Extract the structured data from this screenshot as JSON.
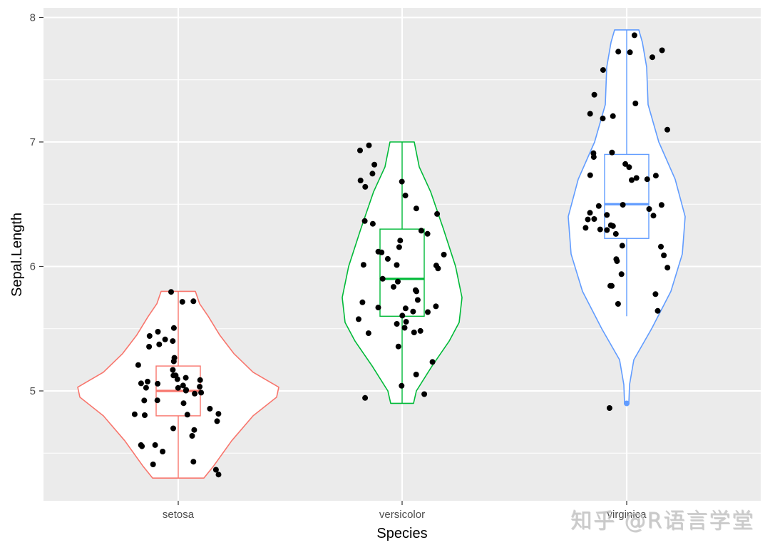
{
  "chart_data": {
    "type": "violin",
    "title": "",
    "xlabel": "Species",
    "ylabel": "Sepal.Length",
    "categories": [
      "setosa",
      "versicolor",
      "virginica"
    ],
    "ylim": [
      4.2,
      8.07
    ],
    "yticks": [
      5,
      6,
      7,
      8
    ],
    "grid": true,
    "legend": "none",
    "panel_background": "#EBEBEB",
    "colors": {
      "setosa": "#F8766D",
      "versicolor": "#00BA38",
      "virginica": "#619CFF"
    },
    "series": [
      {
        "name": "setosa",
        "color": "#F8766D",
        "box": {
          "min": 4.3,
          "q1": 4.8,
          "median": 5.0,
          "q3": 5.2,
          "max": 5.8
        },
        "violin_range": [
          4.3,
          5.8
        ],
        "points": [
          5.1,
          4.9,
          4.7,
          4.6,
          5.0,
          5.4,
          4.6,
          5.0,
          4.4,
          4.9,
          5.4,
          4.8,
          4.8,
          4.3,
          5.8,
          5.7,
          5.4,
          5.1,
          5.7,
          5.1,
          5.4,
          5.1,
          4.6,
          5.1,
          4.8,
          5.0,
          5.0,
          5.2,
          5.2,
          4.7,
          4.8,
          5.4,
          5.2,
          5.5,
          4.9,
          5.0,
          5.5,
          4.9,
          4.4,
          5.1,
          5.0,
          4.5,
          4.4,
          5.0,
          5.1,
          4.8,
          5.1,
          4.6,
          5.3,
          5.0
        ]
      },
      {
        "name": "versicolor",
        "color": "#00BA38",
        "box": {
          "min": 4.9,
          "q1": 5.6,
          "median": 5.9,
          "q3": 6.3,
          "max": 7.0
        },
        "violin_range": [
          4.9,
          7.0
        ],
        "points": [
          7.0,
          6.4,
          6.9,
          5.5,
          6.5,
          5.7,
          6.3,
          4.9,
          6.6,
          5.2,
          5.0,
          5.9,
          6.0,
          6.1,
          5.6,
          6.7,
          5.6,
          5.8,
          6.2,
          5.6,
          5.9,
          6.1,
          6.3,
          6.1,
          6.4,
          6.6,
          6.8,
          6.7,
          6.0,
          5.7,
          5.5,
          5.5,
          5.8,
          6.0,
          5.4,
          6.0,
          6.7,
          6.3,
          5.6,
          5.5,
          5.5,
          6.1,
          5.8,
          5.0,
          5.6,
          5.7,
          5.7,
          6.2,
          5.1,
          5.7
        ]
      },
      {
        "name": "virginica",
        "color": "#619CFF",
        "box": {
          "min": 5.6,
          "q1": 6.225,
          "median": 6.5,
          "q3": 6.9,
          "max": 7.9,
          "outliers": [
            4.9
          ]
        },
        "violin_range": [
          4.9,
          7.9
        ],
        "points": [
          6.3,
          5.8,
          7.1,
          6.3,
          6.5,
          7.6,
          4.9,
          7.3,
          6.7,
          7.2,
          6.5,
          6.4,
          6.8,
          5.7,
          5.8,
          6.4,
          6.5,
          7.7,
          7.7,
          6.0,
          6.9,
          5.6,
          7.7,
          6.3,
          6.7,
          7.2,
          6.2,
          6.1,
          6.4,
          7.2,
          7.4,
          7.9,
          6.4,
          6.3,
          6.1,
          7.7,
          6.3,
          6.4,
          6.0,
          6.9,
          6.7,
          6.9,
          5.8,
          6.8,
          6.7,
          6.7,
          6.3,
          6.5,
          6.2,
          5.9
        ]
      }
    ]
  },
  "axes": {
    "x_title": "Species",
    "y_title": "Sepal.Length",
    "x_ticks": [
      "setosa",
      "versicolor",
      "virginica"
    ],
    "y_ticks": [
      "5",
      "6",
      "7",
      "8"
    ]
  },
  "watermark": "知乎 @R语言学堂"
}
